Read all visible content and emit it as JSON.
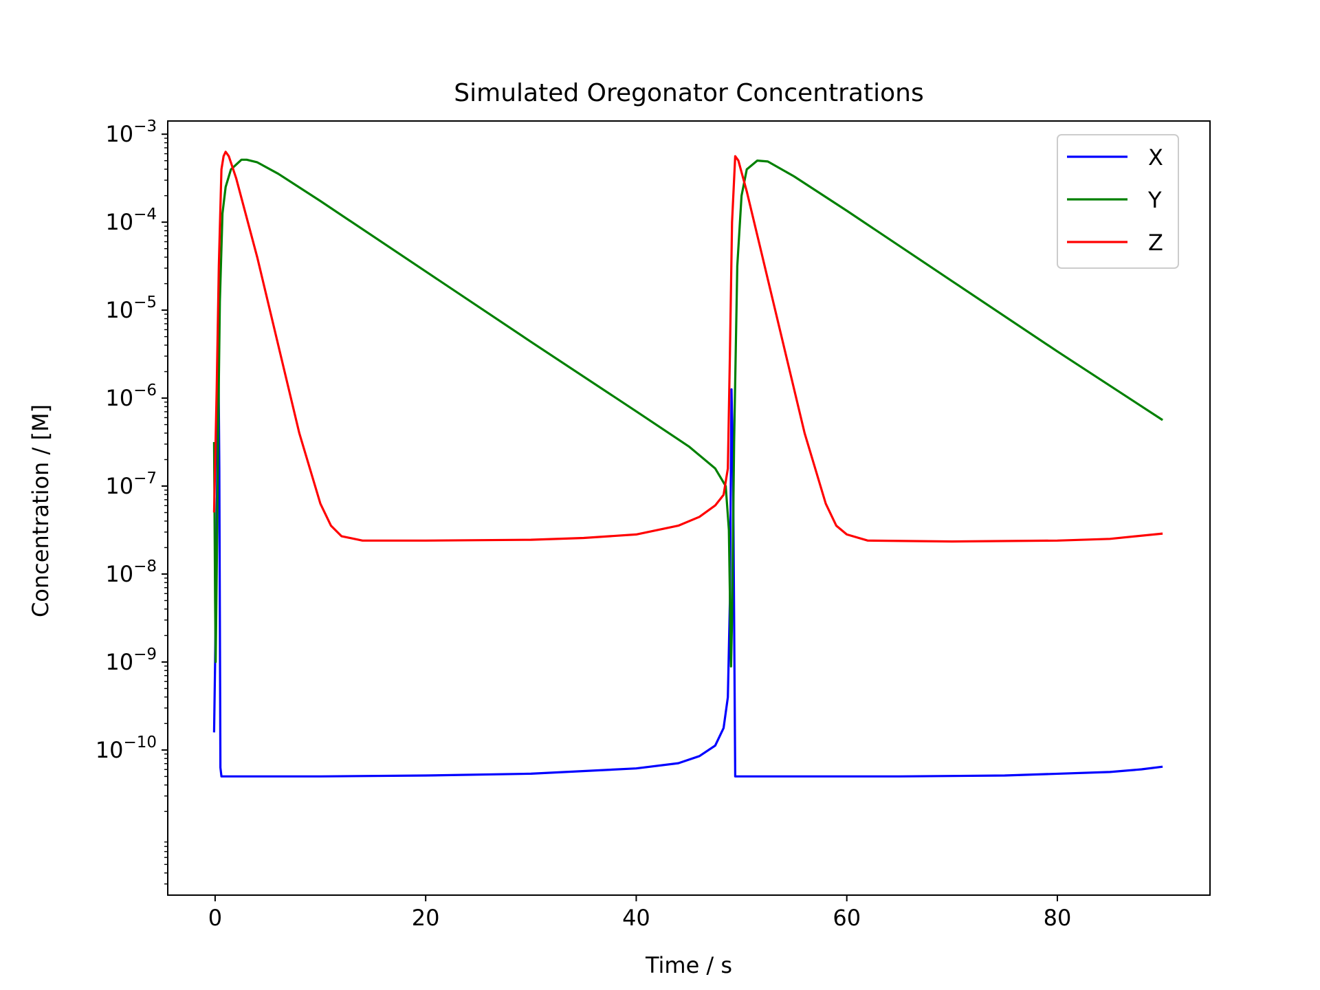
{
  "chart_data": {
    "type": "line",
    "title": "Simulated Oregonator Concentrations",
    "xlabel": "Time / s",
    "ylabel": "Concentration / [M]",
    "yscale": "log",
    "xlim": [
      -4.5,
      94.5
    ],
    "ylim_exponent": [
      -11.65,
      -2.85
    ],
    "grid": false,
    "legend_position": "top-right",
    "x_ticks": [
      0,
      20,
      40,
      60,
      80
    ],
    "x_tick_labels": [
      "0",
      "20",
      "40",
      "60",
      "80"
    ],
    "y_ticks": [
      -10,
      -9,
      -8,
      -7,
      -6,
      -5,
      -4,
      -3
    ],
    "y_tick_labels": [
      {
        "base": "10",
        "exp": "−10"
      },
      {
        "base": "10",
        "exp": "−9"
      },
      {
        "base": "10",
        "exp": "−8"
      },
      {
        "base": "10",
        "exp": "−7"
      },
      {
        "base": "10",
        "exp": "−6"
      },
      {
        "base": "10",
        "exp": "−5"
      },
      {
        "base": "10",
        "exp": "−4"
      },
      {
        "base": "10",
        "exp": "−3"
      }
    ],
    "series": [
      {
        "name": "X",
        "color": "#0000ff",
        "points": [
          [
            -0.1,
            -9.8
          ],
          [
            0.0,
            -9.0
          ],
          [
            0.15,
            -7.5
          ],
          [
            0.3,
            -5.3
          ],
          [
            0.4,
            -6.8
          ],
          [
            0.5,
            -10.2
          ],
          [
            0.6,
            -10.3
          ],
          [
            10,
            -10.3
          ],
          [
            20,
            -10.29
          ],
          [
            30,
            -10.27
          ],
          [
            40,
            -10.21
          ],
          [
            44,
            -10.15
          ],
          [
            46,
            -10.07
          ],
          [
            47.5,
            -9.95
          ],
          [
            48.3,
            -9.75
          ],
          [
            48.7,
            -9.4
          ],
          [
            48.9,
            -8.3
          ],
          [
            49.05,
            -5.9
          ],
          [
            49.2,
            -6.8
          ],
          [
            49.4,
            -10.3
          ],
          [
            55,
            -10.3
          ],
          [
            65,
            -10.3
          ],
          [
            75,
            -10.29
          ],
          [
            85,
            -10.25
          ],
          [
            88,
            -10.22
          ],
          [
            90,
            -10.19
          ]
        ]
      },
      {
        "name": "Y",
        "color": "#008000",
        "points": [
          [
            -0.1,
            -6.5
          ],
          [
            0.0,
            -8.3
          ],
          [
            0.05,
            -9.0
          ],
          [
            0.15,
            -8.0
          ],
          [
            0.3,
            -6.3
          ],
          [
            0.45,
            -4.9
          ],
          [
            0.7,
            -3.9
          ],
          [
            1.0,
            -3.6
          ],
          [
            1.5,
            -3.4
          ],
          [
            2.5,
            -3.29
          ],
          [
            3.0,
            -3.29
          ],
          [
            4.0,
            -3.32
          ],
          [
            6.0,
            -3.45
          ],
          [
            10,
            -3.76
          ],
          [
            20,
            -4.56
          ],
          [
            30,
            -5.36
          ],
          [
            40,
            -6.15
          ],
          [
            45,
            -6.55
          ],
          [
            47.5,
            -6.8
          ],
          [
            48.5,
            -7.0
          ],
          [
            48.8,
            -7.5
          ],
          [
            49.0,
            -9.05
          ],
          [
            49.1,
            -8.5
          ],
          [
            49.3,
            -6.5
          ],
          [
            49.6,
            -4.5
          ],
          [
            50.0,
            -3.7
          ],
          [
            50.5,
            -3.4
          ],
          [
            51.5,
            -3.3
          ],
          [
            52.5,
            -3.31
          ],
          [
            55,
            -3.48
          ],
          [
            60,
            -3.87
          ],
          [
            70,
            -4.67
          ],
          [
            80,
            -5.47
          ],
          [
            90,
            -6.25
          ]
        ]
      },
      {
        "name": "Z",
        "color": "#ff0000",
        "points": [
          [
            -0.1,
            -7.3
          ],
          [
            0.15,
            -5.9
          ],
          [
            0.35,
            -4.5
          ],
          [
            0.6,
            -3.4
          ],
          [
            0.8,
            -3.25
          ],
          [
            1.0,
            -3.2
          ],
          [
            1.3,
            -3.25
          ],
          [
            2.0,
            -3.5
          ],
          [
            4.0,
            -4.4
          ],
          [
            6.0,
            -5.4
          ],
          [
            8.0,
            -6.4
          ],
          [
            10,
            -7.2
          ],
          [
            11,
            -7.45
          ],
          [
            12,
            -7.57
          ],
          [
            14,
            -7.62
          ],
          [
            20,
            -7.62
          ],
          [
            30,
            -7.61
          ],
          [
            35,
            -7.59
          ],
          [
            40,
            -7.55
          ],
          [
            44,
            -7.45
          ],
          [
            46,
            -7.35
          ],
          [
            47.5,
            -7.22
          ],
          [
            48.3,
            -7.1
          ],
          [
            48.7,
            -6.8
          ],
          [
            48.9,
            -5.5
          ],
          [
            49.1,
            -4.0
          ],
          [
            49.4,
            -3.25
          ],
          [
            49.7,
            -3.3
          ],
          [
            50.5,
            -3.65
          ],
          [
            52,
            -4.4
          ],
          [
            54,
            -5.4
          ],
          [
            56,
            -6.4
          ],
          [
            58,
            -7.2
          ],
          [
            59,
            -7.45
          ],
          [
            60,
            -7.55
          ],
          [
            62,
            -7.62
          ],
          [
            70,
            -7.63
          ],
          [
            80,
            -7.62
          ],
          [
            85,
            -7.6
          ],
          [
            90,
            -7.54
          ]
        ]
      }
    ]
  }
}
